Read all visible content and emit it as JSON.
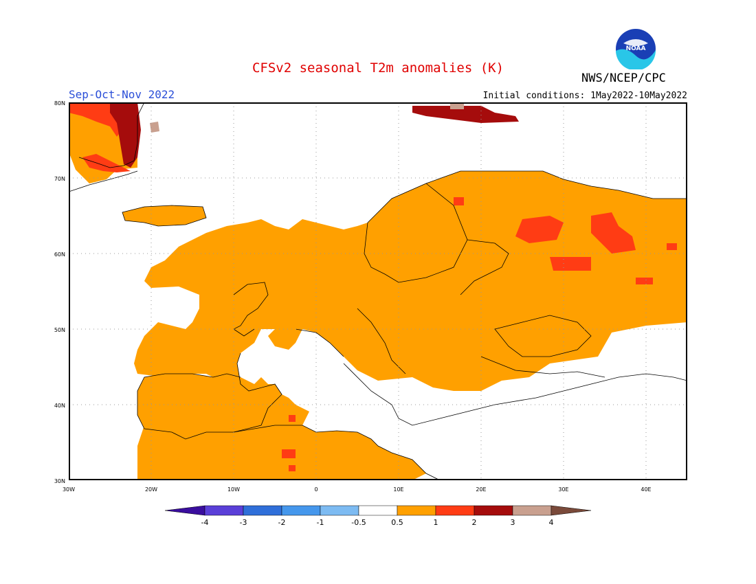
{
  "title": "CFSv2 seasonal T2m anomalies (K)",
  "subtitle": "Sep-Oct-Nov 2022",
  "initial_conditions": "Initial conditions: 1May2022-10May2022",
  "agency": "NWS/NCEP/CPC",
  "logo_text": "NOAA",
  "map": {
    "lon_range": [
      -30,
      45
    ],
    "lat_range": [
      30,
      80
    ],
    "lon_ticks": [
      "30W",
      "20W",
      "10W",
      "0",
      "10E",
      "20E",
      "30E",
      "40E"
    ],
    "lat_ticks": [
      "80N",
      "70N",
      "60N",
      "50N",
      "40N",
      "30N"
    ],
    "gridlines": "dotted",
    "regions": [
      {
        "name": "greenland-east",
        "category": "0.5-1"
      },
      {
        "name": "iceland",
        "category": "0.5-1"
      },
      {
        "name": "continental-europe",
        "category": "0.5-1"
      },
      {
        "name": "north-africa",
        "category": "0.5-1"
      },
      {
        "name": "western-russia",
        "category": "1-2"
      },
      {
        "name": "svalbard",
        "category": "2-3"
      }
    ]
  },
  "colorbar": {
    "labels": [
      "-4",
      "-3",
      "-2",
      "-1",
      "-0.5",
      "0.5",
      "1",
      "2",
      "3",
      "4"
    ],
    "colors": [
      "#3a0e9e",
      "#5a3fd8",
      "#2f6fd9",
      "#4597ec",
      "#7dbbf2",
      "#ffffff",
      "#ffa000",
      "#ff3c14",
      "#a50c0c",
      "#c9a08f",
      "#7a4a3a"
    ]
  }
}
